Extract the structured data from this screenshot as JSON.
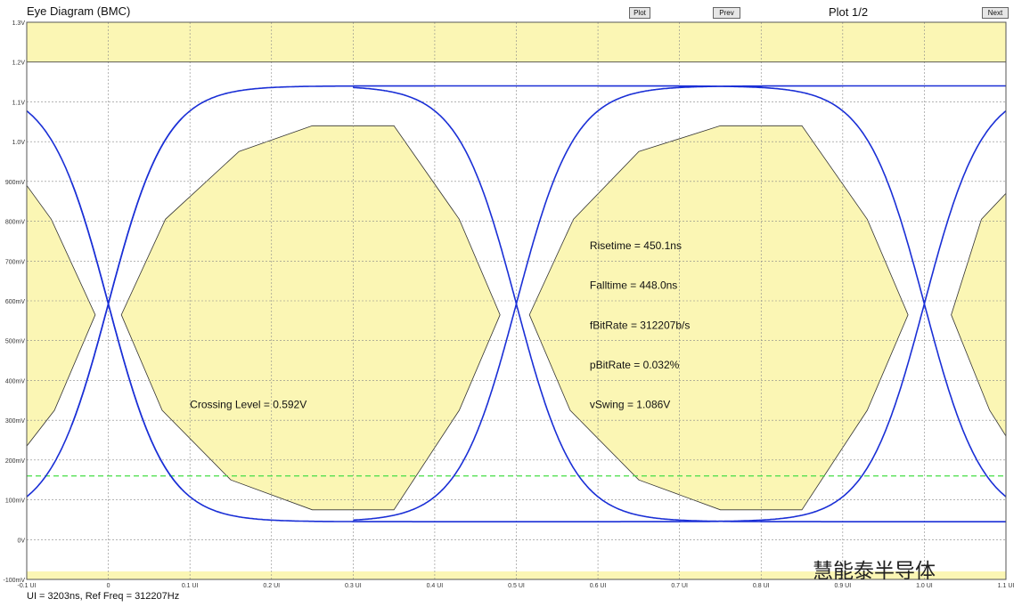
{
  "header": {
    "title": "Eye Diagram (BMC)",
    "plot_label": "Plot 1/2",
    "buttons": {
      "plot": "Plot",
      "prev": "Prev",
      "next": "Next"
    }
  },
  "footer": {
    "text": "UI = 3203ns, Ref Freq = 312207Hz"
  },
  "watermark": {
    "text": "慧能泰半导体"
  },
  "colors": {
    "trace": "#1a2fd6",
    "mask": "#fbf6b4",
    "threshold": "#44dd44",
    "grid": "#888888"
  },
  "chart_data": {
    "type": "line",
    "title": "Eye Diagram (BMC)",
    "x_unit": "UI",
    "y_unit": "V",
    "xlim": [
      -0.1,
      1.1
    ],
    "ylim": [
      -0.1,
      1.3
    ],
    "x_ticks": [
      -0.1,
      0,
      0.1,
      0.2,
      0.3,
      0.4,
      0.5,
      0.6,
      0.7,
      0.8,
      0.9,
      1.0,
      1.1
    ],
    "x_tick_labels": [
      "-0.1 UI",
      "0",
      "0.1 UI",
      "0.2 UI",
      "0.3 UI",
      "0.4 UI",
      "0.5 UI",
      "0.6 UI",
      "0.7 UI",
      "0.8 UI",
      "0.9 UI",
      "1.0 UI",
      "1.1 UI"
    ],
    "y_ticks": [
      -0.1,
      0,
      0.1,
      0.2,
      0.3,
      0.4,
      0.5,
      0.6,
      0.7,
      0.8,
      0.9,
      1.0,
      1.1,
      1.2,
      1.3
    ],
    "y_tick_labels": [
      "-100mV",
      "0V",
      "100mV",
      "200mV",
      "300mV",
      "400mV",
      "500mV",
      "600mV",
      "700mV",
      "800mV",
      "900mV",
      "1.0V",
      "1.1V",
      "1.2V",
      "1.3V"
    ],
    "grid": true,
    "levels": {
      "high": 1.14,
      "low": 0.045
    },
    "crossings": [
      0.0,
      0.5,
      1.0
    ],
    "crossing_level": 0.592,
    "mask_band_top": [
      1.2,
      1.3
    ],
    "mask_band_bottom": [
      -0.1,
      -0.08
    ],
    "threshold_line": 0.16,
    "masks": [
      {
        "points": [
          [
            0.16,
            0.975
          ],
          [
            0.25,
            1.04
          ],
          [
            0.35,
            1.04
          ],
          [
            0.43,
            0.805
          ],
          [
            0.48,
            0.565
          ],
          [
            0.43,
            0.325
          ],
          [
            0.35,
            0.075
          ],
          [
            0.25,
            0.075
          ],
          [
            0.15,
            0.15
          ],
          [
            0.066,
            0.325
          ],
          [
            0.016,
            0.565
          ],
          [
            0.07,
            0.805
          ]
        ]
      },
      {
        "points": [
          [
            0.65,
            0.975
          ],
          [
            0.75,
            1.04
          ],
          [
            0.85,
            1.04
          ],
          [
            0.93,
            0.805
          ],
          [
            0.98,
            0.565
          ],
          [
            0.93,
            0.325
          ],
          [
            0.85,
            0.075
          ],
          [
            0.75,
            0.075
          ],
          [
            0.65,
            0.15
          ],
          [
            0.566,
            0.325
          ],
          [
            0.516,
            0.565
          ],
          [
            0.57,
            0.805
          ]
        ]
      },
      {
        "points": [
          [
            -0.1,
            0.89
          ],
          [
            -0.07,
            0.805
          ],
          [
            -0.016,
            0.565
          ],
          [
            -0.066,
            0.325
          ],
          [
            -0.1,
            0.235
          ]
        ]
      },
      {
        "points": [
          [
            1.1,
            0.87
          ],
          [
            1.07,
            0.805
          ],
          [
            1.033,
            0.565
          ],
          [
            1.08,
            0.325
          ],
          [
            1.1,
            0.26
          ]
        ]
      }
    ],
    "annotations": [
      {
        "text": "Crossing Level = 0.592V",
        "x": 0.1,
        "y": 0.33
      },
      {
        "text": "Risetime = 450.1ns",
        "x": 0.59,
        "y": 0.73
      },
      {
        "text": "Falltime = 448.0ns",
        "x": 0.59,
        "y": 0.63
      },
      {
        "text": "fBitRate = 312207b/s",
        "x": 0.59,
        "y": 0.53
      },
      {
        "text": "pBitRate = 0.032%",
        "x": 0.59,
        "y": 0.43
      },
      {
        "text": "vSwing = 1.086V",
        "x": 0.59,
        "y": 0.33
      }
    ]
  }
}
